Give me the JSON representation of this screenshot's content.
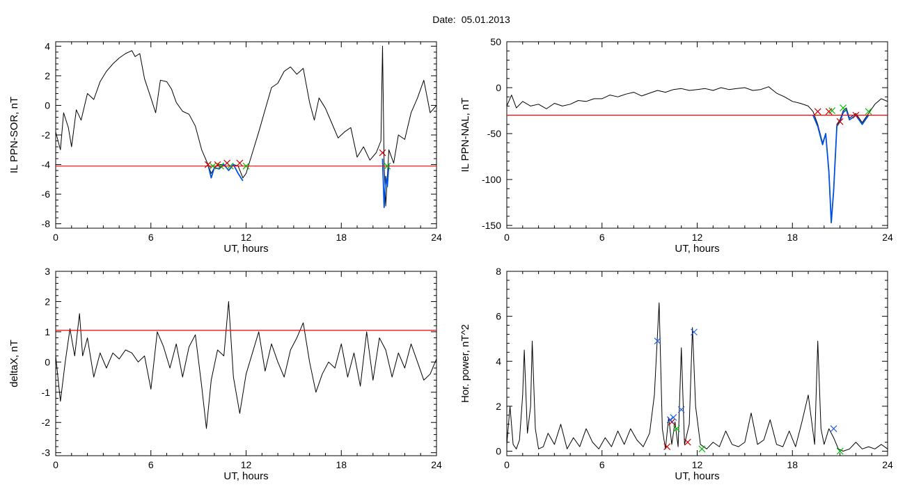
{
  "header": {
    "date_label": "Date:",
    "date_value": "05.01.2013"
  },
  "colors": {
    "trace": "#000000",
    "threshold": "#ff0000",
    "highlight": "#0050e0",
    "green_marker": "#00bb00",
    "red_marker": "#cc0000",
    "blue_marker": "#2060e0"
  },
  "chart_data": [
    {
      "type": "line",
      "xlabel": "UT, hours",
      "ylabel": "IL PPN-SOR, nT",
      "xlim": [
        0,
        24
      ],
      "ylim": [
        -8.3,
        4.3
      ],
      "xticks": [
        0,
        6,
        12,
        18,
        24
      ],
      "yticks": [
        -8,
        -6,
        -4,
        -2,
        0,
        2,
        4
      ],
      "threshold": -4.1,
      "series": [
        {
          "x": [
            0,
            0.3,
            0.5,
            0.8,
            1.0,
            1.3,
            1.6,
            2.0,
            2.4,
            2.8,
            3.2,
            3.6,
            4.0,
            4.4,
            4.8,
            5.0,
            5.3,
            5.6,
            6.0,
            6.3,
            6.6,
            7.0,
            7.3,
            7.6,
            8.0,
            8.4,
            8.8,
            9.2,
            9.6,
            9.8,
            10.0,
            10.3,
            10.6,
            10.9,
            11.2,
            11.5,
            11.8,
            12.0,
            12.4,
            12.8,
            13.2,
            13.6,
            14.0,
            14.4,
            14.8,
            15.2,
            15.6,
            16.0,
            16.3,
            16.6,
            17.0,
            17.4,
            17.8,
            18.2,
            18.6,
            19.0,
            19.4,
            19.8,
            20.2,
            20.5,
            20.6,
            20.7,
            20.8,
            21.0,
            21.3,
            21.6,
            22.0,
            22.4,
            22.8,
            23.2,
            23.6,
            24.0
          ],
          "y": [
            -1.8,
            -3.0,
            -0.5,
            -1.5,
            -2.8,
            -0.3,
            -1.0,
            0.8,
            0.4,
            1.6,
            2.3,
            2.8,
            3.2,
            3.5,
            3.7,
            3.3,
            3.5,
            1.8,
            0.5,
            -0.5,
            1.7,
            1.6,
            1.1,
            0.2,
            -0.4,
            -0.6,
            -1.4,
            -3.0,
            -4.0,
            -4.6,
            -4.2,
            -4.0,
            -4.0,
            -4.4,
            -4.0,
            -4.1,
            -4.9,
            -4.6,
            -3.2,
            -1.8,
            -0.3,
            1.2,
            1.5,
            2.3,
            2.6,
            2.1,
            2.5,
            0.2,
            -1.0,
            0.5,
            -0.2,
            -1.2,
            -2.2,
            -1.8,
            -1.5,
            -3.5,
            -2.8,
            -3.7,
            -3.2,
            -2.4,
            4.0,
            -4.0,
            -6.8,
            -3.0,
            -3.9,
            -2.0,
            -2.3,
            -0.5,
            0.5,
            1.7,
            -0.5,
            0.0
          ]
        }
      ],
      "highlights": [
        {
          "x": [
            9.6,
            9.8,
            10.0,
            10.3,
            10.6,
            10.9,
            11.2,
            11.5,
            11.8
          ],
          "y": [
            -4.0,
            -4.9,
            -4.2,
            -4.3,
            -4.0,
            -4.4,
            -4.0,
            -4.6,
            -5.1
          ]
        },
        {
          "x": [
            20.6,
            20.7,
            20.8,
            20.9,
            21.0
          ],
          "y": [
            -3.6,
            -6.9,
            -4.8,
            -5.5,
            -4.0
          ]
        }
      ],
      "markers_red": [
        {
          "x": 9.6,
          "y": -4.0
        },
        {
          "x": 10.2,
          "y": -4.0
        },
        {
          "x": 10.8,
          "y": -3.9
        },
        {
          "x": 11.6,
          "y": -3.9
        },
        {
          "x": 20.6,
          "y": -3.2
        }
      ],
      "markers_green": [
        {
          "x": 9.9,
          "y": -4.1
        },
        {
          "x": 10.4,
          "y": -4.1
        },
        {
          "x": 11.0,
          "y": -4.1
        },
        {
          "x": 12.0,
          "y": -4.1
        },
        {
          "x": 20.9,
          "y": -4.1
        }
      ]
    },
    {
      "type": "line",
      "xlabel": "UT, hours",
      "ylabel": "IL PPN-NAL, nT",
      "xlim": [
        0,
        24
      ],
      "ylim": [
        -153,
        50
      ],
      "xticks": [
        0,
        6,
        12,
        18,
        24
      ],
      "yticks": [
        -150,
        -100,
        -50,
        0,
        50
      ],
      "threshold": -30,
      "series": [
        {
          "x": [
            0,
            0.3,
            0.6,
            1.0,
            1.5,
            2.0,
            2.5,
            3.0,
            3.5,
            4.0,
            4.5,
            5.0,
            5.5,
            6.0,
            6.5,
            7.0,
            7.5,
            8.0,
            8.5,
            9.0,
            9.5,
            10.0,
            10.5,
            11.0,
            11.5,
            12.0,
            12.5,
            13.0,
            13.5,
            14.0,
            14.5,
            15.0,
            15.5,
            16.0,
            16.5,
            17.0,
            17.5,
            18.0,
            18.5,
            19.0,
            19.3,
            19.6,
            19.9,
            20.1,
            20.3,
            20.45,
            20.6,
            20.8,
            21.0,
            21.2,
            21.4,
            21.6,
            22.0,
            22.4,
            22.8,
            23.2,
            23.6,
            24.0
          ],
          "y": [
            -20,
            -8,
            -22,
            -15,
            -20,
            -18,
            -23,
            -17,
            -20,
            -18,
            -14,
            -15,
            -12,
            -12,
            -8,
            -10,
            -7,
            -5,
            -9,
            -6,
            -3,
            -5,
            -2,
            -1,
            -3,
            -2,
            -1,
            -3,
            0,
            -2,
            -1,
            0,
            -3,
            -2,
            1,
            -6,
            -10,
            -15,
            -17,
            -20,
            -26,
            -40,
            -60,
            -50,
            -90,
            -145,
            -110,
            -40,
            -35,
            -25,
            -22,
            -33,
            -28,
            -38,
            -28,
            -18,
            -12,
            -15
          ]
        }
      ],
      "highlights": [
        {
          "x": [
            19.3,
            19.6,
            19.9,
            20.1,
            20.3,
            20.45,
            20.6,
            20.8,
            21.0,
            21.2,
            21.4,
            21.6,
            22.0,
            22.4,
            22.8
          ],
          "y": [
            -30,
            -42,
            -62,
            -50,
            -92,
            -147,
            -112,
            -42,
            -37,
            -27,
            -24,
            -35,
            -30,
            -40,
            -30
          ]
        }
      ],
      "markers_red": [
        {
          "x": 19.6,
          "y": -26
        },
        {
          "x": 20.3,
          "y": -26
        },
        {
          "x": 21.0,
          "y": -37
        },
        {
          "x": 22.0,
          "y": -30
        }
      ],
      "markers_green": [
        {
          "x": 20.5,
          "y": -25
        },
        {
          "x": 21.2,
          "y": -22
        },
        {
          "x": 22.8,
          "y": -26
        }
      ]
    },
    {
      "type": "line",
      "xlabel": "UT, hours",
      "ylabel": "deltaX, nT",
      "xlim": [
        0,
        24
      ],
      "ylim": [
        -3.1,
        3.0
      ],
      "xticks": [
        0,
        6,
        12,
        18,
        24
      ],
      "yticks": [
        -3,
        -2,
        -1,
        0,
        1,
        2,
        3
      ],
      "threshold": 1.05,
      "series": [
        {
          "x": [
            0,
            0.3,
            0.6,
            0.9,
            1.2,
            1.5,
            1.7,
            2.0,
            2.4,
            2.8,
            3.2,
            3.6,
            4.0,
            4.4,
            4.8,
            5.2,
            5.6,
            6.0,
            6.4,
            6.8,
            7.2,
            7.6,
            8.0,
            8.4,
            8.8,
            9.2,
            9.5,
            9.8,
            10.2,
            10.6,
            10.9,
            11.2,
            11.6,
            12.0,
            12.4,
            12.8,
            13.2,
            13.6,
            14.0,
            14.4,
            14.8,
            15.2,
            15.6,
            16.0,
            16.4,
            16.8,
            17.2,
            17.6,
            18.0,
            18.4,
            18.8,
            19.2,
            19.6,
            20.0,
            20.4,
            20.8,
            21.2,
            21.6,
            22.0,
            22.4,
            22.8,
            23.2,
            23.6,
            24.0
          ],
          "y": [
            0.2,
            -1.3,
            0.0,
            1.1,
            0.2,
            1.6,
            0.2,
            0.8,
            -0.5,
            0.3,
            -0.2,
            0.3,
            0.1,
            0.4,
            0.3,
            0.0,
            0.2,
            -0.9,
            1.0,
            0.5,
            -0.2,
            0.6,
            -0.5,
            0.5,
            0.9,
            -0.8,
            -2.2,
            -0.6,
            0.4,
            0.2,
            2.0,
            -0.5,
            -1.7,
            -0.4,
            0.3,
            1.0,
            -0.3,
            0.6,
            0.0,
            -0.5,
            0.4,
            0.8,
            1.3,
            0.0,
            -1.0,
            -0.4,
            0.0,
            -0.2,
            0.6,
            -0.5,
            0.3,
            -0.8,
            1.0,
            -0.6,
            0.8,
            0.4,
            -0.5,
            0.3,
            -0.2,
            0.6,
            0.0,
            -0.6,
            -0.4,
            0.1
          ]
        }
      ]
    },
    {
      "type": "line",
      "xlabel": "UT, hours",
      "ylabel": "Hor. power, nT^2",
      "xlim": [
        0,
        24
      ],
      "ylim": [
        -0.2,
        8.0
      ],
      "xticks": [
        0,
        6,
        12,
        18,
        24
      ],
      "yticks": [
        0,
        2,
        4,
        6,
        8
      ],
      "series": [
        {
          "x": [
            0,
            0.2,
            0.4,
            0.6,
            0.8,
            1.0,
            1.1,
            1.3,
            1.5,
            1.6,
            1.8,
            2.0,
            2.3,
            2.6,
            3.0,
            3.4,
            3.8,
            4.2,
            4.6,
            5.0,
            5.4,
            5.8,
            6.2,
            6.6,
            7.0,
            7.4,
            7.8,
            8.2,
            8.6,
            9.0,
            9.3,
            9.6,
            9.8,
            10.0,
            10.2,
            10.4,
            10.6,
            10.8,
            11.0,
            11.2,
            11.5,
            11.7,
            11.9,
            12.2,
            12.6,
            13.0,
            13.4,
            13.8,
            14.2,
            14.6,
            15.0,
            15.4,
            15.8,
            16.2,
            16.6,
            17.0,
            17.4,
            17.8,
            18.2,
            18.6,
            19.0,
            19.4,
            19.6,
            19.8,
            20.0,
            20.3,
            20.6,
            20.9,
            21.2,
            21.6,
            22.0,
            22.4,
            22.8,
            23.2,
            23.6,
            24.0
          ],
          "y": [
            0.3,
            2.0,
            0.3,
            0.1,
            0.5,
            2.5,
            4.5,
            0.8,
            2.0,
            4.9,
            1.0,
            0.1,
            0.2,
            0.8,
            0.3,
            1.2,
            0.1,
            0.6,
            0.2,
            1.0,
            0.4,
            0.1,
            0.6,
            0.2,
            0.9,
            0.3,
            1.0,
            0.5,
            0.2,
            0.8,
            2.5,
            6.6,
            1.0,
            0.1,
            1.5,
            0.3,
            1.3,
            0.2,
            4.6,
            0.3,
            1.2,
            5.5,
            2.0,
            0.3,
            0.1,
            0.4,
            0.2,
            0.9,
            0.3,
            0.2,
            0.4,
            1.7,
            0.3,
            0.5,
            1.4,
            0.3,
            0.2,
            0.9,
            0.2,
            1.3,
            2.5,
            0.3,
            4.9,
            1.0,
            0.3,
            1.0,
            0.6,
            0.1,
            0.0,
            0.1,
            0.4,
            0.1,
            0.2,
            0.1,
            0.3,
            0.1
          ]
        }
      ],
      "markers_blue": [
        {
          "x": 9.5,
          "y": 4.9
        },
        {
          "x": 10.3,
          "y": 1.4
        },
        {
          "x": 10.5,
          "y": 1.5
        },
        {
          "x": 11.0,
          "y": 1.85
        },
        {
          "x": 11.8,
          "y": 5.3
        },
        {
          "x": 20.6,
          "y": 1.0
        }
      ],
      "markers_red": [
        {
          "x": 10.1,
          "y": 0.2
        },
        {
          "x": 10.4,
          "y": 1.3
        },
        {
          "x": 11.4,
          "y": 0.4
        }
      ],
      "markers_green": [
        {
          "x": 10.7,
          "y": 1.0
        },
        {
          "x": 12.3,
          "y": 0.1
        },
        {
          "x": 21.0,
          "y": 0.0
        }
      ]
    }
  ]
}
